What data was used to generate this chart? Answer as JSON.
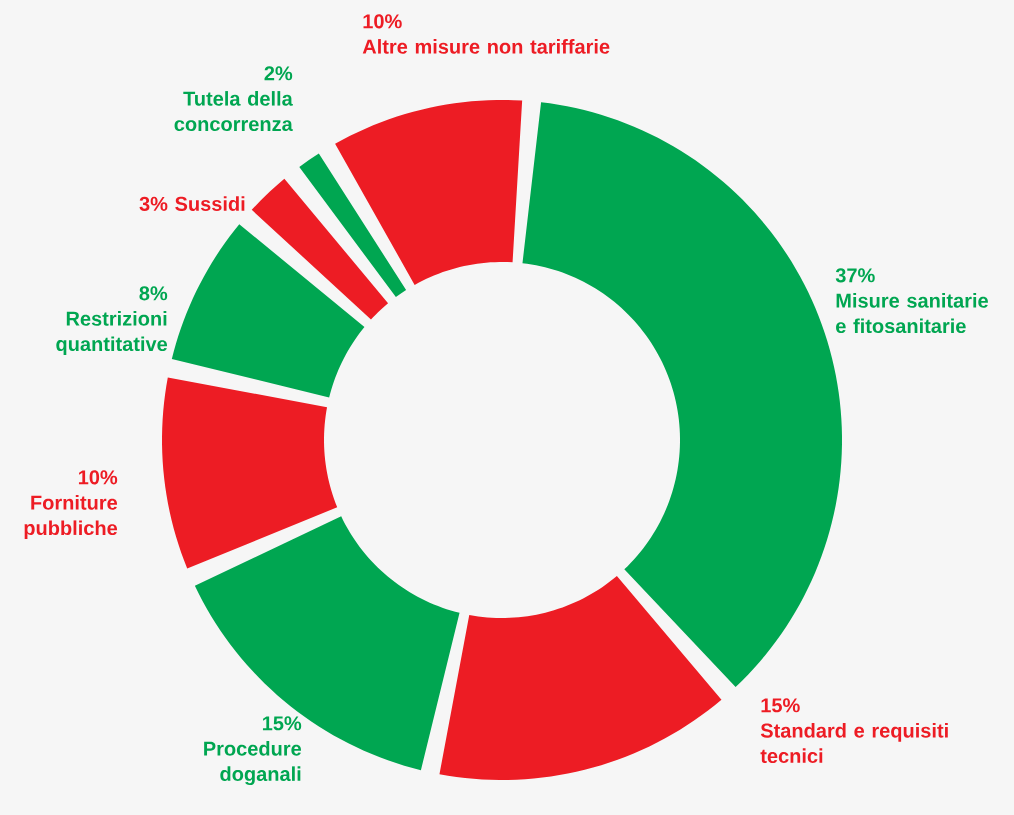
{
  "chart_data": {
    "type": "donut",
    "categories": [
      "Misure sanitarie e fitosanitarie",
      "Standard e requisiti tecnici",
      "Procedure doganali",
      "Forniture pubbliche",
      "Restrizioni quantitative",
      "Sussidi",
      "Tutela della concorrenza",
      "Altre misure non tariffarie"
    ],
    "values": [
      37,
      15,
      15,
      10,
      8,
      3,
      2,
      10
    ],
    "value_labels": [
      "37%",
      "15%",
      "15%",
      "10%",
      "8%",
      "3%",
      "2%",
      "10%"
    ],
    "colors": [
      "#00a651",
      "#ed1c24",
      "#00a651",
      "#ed1c24",
      "#00a651",
      "#ed1c24",
      "#00a651",
      "#ed1c24"
    ]
  }
}
